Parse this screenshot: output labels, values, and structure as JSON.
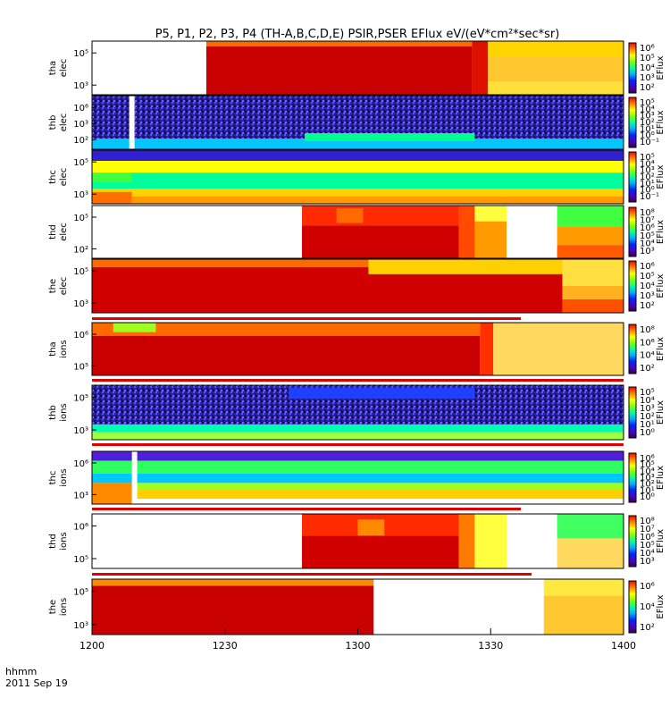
{
  "chart_data": {
    "type": "heatmap",
    "title": "P5, P1, P2, P3, P4 (TH-A,B,C,D,E) PSIR,PSER EFlux eV/(eV*cm²*sec*sr)",
    "x_ticks": [
      "1200",
      "1230",
      "1300",
      "1330",
      "1400"
    ],
    "x_start_label": "hhmm",
    "date_label": "2011 Sep 19",
    "panels": [
      {
        "name": "tha elec",
        "probe": "tha",
        "species": "elec",
        "y_ticks": [
          "10⁵",
          "10³"
        ],
        "cbar_label": "EFlux",
        "cbar_ticks": [
          "10⁶",
          "10⁵",
          "10⁴",
          "10³",
          "10²"
        ],
        "blocks": [
          [
            0,
            0.36,
            0,
            1,
            "#ffffff"
          ],
          [
            0.36,
            0.42,
            0,
            1,
            "#e8101a"
          ],
          [
            0.42,
            1,
            0,
            1,
            "#ffffff"
          ]
        ]
      },
      {
        "name": "thb elec",
        "probe": "thb",
        "species": "elec",
        "y_ticks": [
          "10⁶",
          "10³",
          "10²"
        ],
        "cbar_label": "EFlux",
        "cbar_ticks": [
          "10⁵",
          "10⁴",
          "10³",
          "10²",
          "10¹",
          "10⁰",
          "10⁻¹"
        ]
      },
      {
        "name": "thc elec",
        "probe": "thc",
        "species": "elec",
        "y_ticks": [
          "10⁵",
          "10³"
        ],
        "cbar_label": "EFlux",
        "cbar_ticks": [
          "10⁵",
          "10⁴",
          "10³",
          "10²",
          "10¹",
          "10⁰",
          "10⁻¹"
        ]
      },
      {
        "name": "thd elec",
        "probe": "thd",
        "species": "elec",
        "y_ticks": [
          "10⁵",
          "10²"
        ],
        "cbar_label": "EFlux",
        "cbar_ticks": [
          "10⁸",
          "10⁷",
          "10⁶",
          "10⁵",
          "10⁴",
          "10³"
        ]
      },
      {
        "name": "the elec",
        "probe": "the",
        "species": "elec",
        "y_ticks": [
          "10⁵",
          "10³"
        ],
        "cbar_label": "EFlux",
        "cbar_ticks": [
          "10⁶",
          "10⁵",
          "10⁴",
          "10³",
          "10²"
        ]
      },
      {
        "name": "tha ions",
        "probe": "tha",
        "species": "ions",
        "y_ticks": [
          "10⁶",
          "10⁵"
        ],
        "cbar_label": "EFlux",
        "cbar_ticks": [
          "10⁸",
          "10⁶",
          "10⁴",
          "10²"
        ]
      },
      {
        "name": "thb ions",
        "probe": "thb",
        "species": "ions",
        "y_ticks": [
          "10⁵",
          "10³"
        ],
        "cbar_label": "EFlux",
        "cbar_ticks": [
          "10⁵",
          "10⁴",
          "10³",
          "10²",
          "10¹",
          "10⁰"
        ]
      },
      {
        "name": "thc ions",
        "probe": "thc",
        "species": "ions",
        "y_ticks": [
          "10⁶",
          "10³"
        ],
        "cbar_label": "EFlux",
        "cbar_ticks": [
          "10⁶",
          "10⁵",
          "10⁴",
          "10³",
          "10²",
          "10¹",
          "10⁰"
        ]
      },
      {
        "name": "thd ions",
        "probe": "thd",
        "species": "ions",
        "y_ticks": [
          "10⁶",
          "10⁵"
        ],
        "cbar_label": "EFlux",
        "cbar_ticks": [
          "10⁸",
          "10⁷",
          "10⁶",
          "10⁵",
          "10⁴",
          "10³"
        ]
      },
      {
        "name": "the ions",
        "probe": "the",
        "species": "ions",
        "y_ticks": [
          "10⁵",
          "10³"
        ],
        "cbar_label": "EFlux",
        "cbar_ticks": [
          "10⁶",
          "10⁴",
          "10²"
        ]
      }
    ]
  }
}
